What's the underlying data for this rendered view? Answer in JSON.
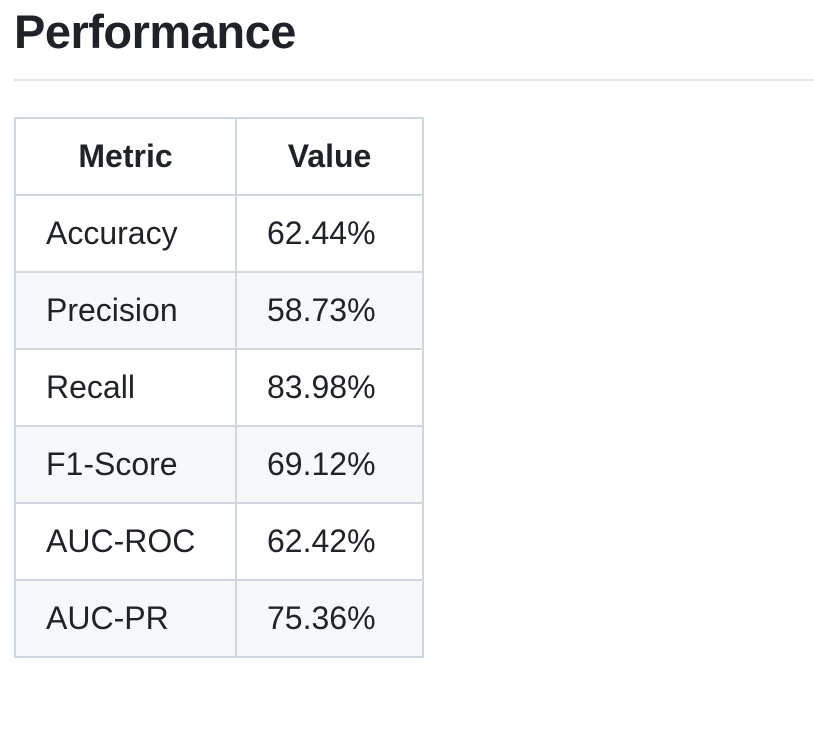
{
  "header": {
    "title": "Performance"
  },
  "table": {
    "columns": [
      "Metric",
      "Value"
    ],
    "rows": [
      [
        "Accuracy",
        "62.44%"
      ],
      [
        "Precision",
        "58.73%"
      ],
      [
        "Recall",
        "83.98%"
      ],
      [
        "F1-Score",
        "69.12%"
      ],
      [
        "AUC-ROC",
        "62.42%"
      ],
      [
        "AUC-PR",
        "75.36%"
      ]
    ]
  }
}
